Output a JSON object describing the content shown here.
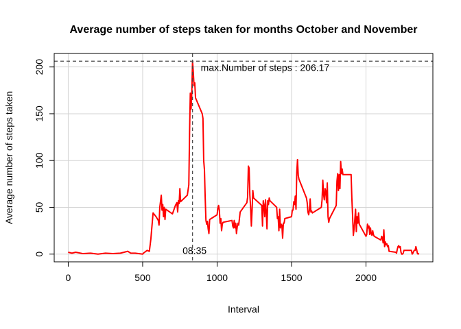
{
  "chart_data": {
    "type": "line",
    "title": "Average number of steps taken for months October and November",
    "xlabel": "Interval",
    "ylabel": "Average number of steps taken",
    "x": [
      0,
      25,
      50,
      100,
      150,
      200,
      250,
      300,
      350,
      400,
      420,
      450,
      500,
      505,
      530,
      545,
      555,
      570,
      590,
      605,
      610,
      615,
      625,
      630,
      635,
      640,
      645,
      650,
      655,
      700,
      720,
      730,
      735,
      740,
      745,
      750,
      755,
      800,
      810,
      815,
      820,
      825,
      830,
      835,
      840,
      845,
      850,
      855,
      900,
      905,
      910,
      915,
      920,
      925,
      930,
      935,
      940,
      945,
      950,
      1000,
      1005,
      1010,
      1015,
      1020,
      1025,
      1030,
      1035,
      1040,
      1100,
      1105,
      1110,
      1115,
      1120,
      1125,
      1130,
      1135,
      1140,
      1145,
      1150,
      1155,
      1200,
      1205,
      1210,
      1215,
      1220,
      1225,
      1230,
      1235,
      1240,
      1245,
      1300,
      1305,
      1310,
      1315,
      1320,
      1325,
      1330,
      1335,
      1340,
      1345,
      1350,
      1355,
      1400,
      1405,
      1410,
      1415,
      1420,
      1425,
      1430,
      1435,
      1440,
      1445,
      1450,
      1455,
      1500,
      1505,
      1510,
      1515,
      1520,
      1525,
      1530,
      1535,
      1540,
      1545,
      1550,
      1600,
      1605,
      1610,
      1615,
      1620,
      1625,
      1630,
      1635,
      1640,
      1700,
      1705,
      1710,
      1715,
      1720,
      1725,
      1730,
      1735,
      1740,
      1745,
      1750,
      1755,
      1800,
      1805,
      1810,
      1815,
      1820,
      1825,
      1830,
      1835,
      1840,
      1845,
      1900,
      1905,
      1910,
      1915,
      1920,
      1925,
      1930,
      1935,
      1940,
      1945,
      1950,
      1955,
      2000,
      2005,
      2010,
      2015,
      2020,
      2025,
      2030,
      2035,
      2040,
      2045,
      2050,
      2055,
      2100,
      2105,
      2110,
      2115,
      2120,
      2125,
      2130,
      2135,
      2140,
      2145,
      2150,
      2155,
      2200,
      2205,
      2210,
      2215,
      2220,
      2225,
      2230,
      2235,
      2240,
      2245,
      2250,
      2255,
      2300,
      2305,
      2310,
      2315,
      2320,
      2325,
      2330,
      2335,
      2340,
      2345,
      2350,
      2355
    ],
    "values": [
      2,
      1,
      2,
      0.5,
      1,
      0,
      1,
      0.5,
      1,
      3,
      1,
      1,
      0,
      1,
      4,
      3,
      16,
      44,
      40,
      36,
      31,
      50,
      63,
      47,
      53,
      40,
      50,
      37,
      48,
      43,
      52,
      55,
      45,
      57,
      54,
      70,
      56,
      63,
      74,
      130,
      172,
      155,
      172,
      206.17,
      195,
      180,
      183,
      167,
      150,
      145,
      100,
      90,
      60,
      36,
      32,
      35,
      27,
      22,
      37,
      42,
      49,
      52,
      47,
      33,
      38,
      25,
      32,
      34,
      36,
      30,
      28,
      36,
      28,
      33,
      22,
      29,
      33,
      31,
      38,
      45,
      55,
      61,
      94,
      92,
      63,
      50,
      30,
      47,
      68,
      60,
      52,
      30,
      57,
      52,
      40,
      58,
      45,
      27,
      57,
      53,
      60,
      57,
      50,
      38,
      40,
      25,
      48,
      28,
      32,
      31,
      17,
      33,
      33,
      38,
      40,
      47,
      47,
      56,
      53,
      62,
      48,
      87,
      101,
      84,
      80,
      60,
      55,
      45,
      42,
      47,
      59,
      45,
      46,
      44,
      50,
      58,
      79,
      64,
      58,
      70,
      67,
      55,
      76,
      40,
      34,
      38,
      52,
      78,
      86,
      68,
      85,
      70,
      99,
      86,
      91,
      85,
      85,
      60,
      41,
      20,
      27,
      37,
      48,
      24,
      40,
      33,
      44,
      32,
      19,
      21,
      32,
      28,
      30,
      21,
      28,
      22,
      20,
      25,
      21,
      19,
      15,
      19,
      18,
      12,
      26,
      8,
      13,
      10,
      11,
      8,
      9,
      3,
      2,
      1,
      5,
      8,
      9,
      7,
      8,
      2,
      0,
      0,
      1,
      4,
      4,
      4,
      0,
      1,
      3,
      4,
      4,
      8,
      5,
      1,
      0,
      1
    ],
    "color": "#ff0000",
    "xlim": [
      -94.2,
      2449.2
    ],
    "ylim": [
      -8.25,
      214.42
    ],
    "xticks": [
      0,
      500,
      1000,
      1500,
      2000
    ],
    "yticks": [
      0,
      50,
      100,
      150,
      200
    ],
    "grid": true,
    "hline": 206.17,
    "vline": 835,
    "annotations": [
      {
        "text": "max.Number of steps : 206.17"
      },
      {
        "text": "08:35"
      }
    ]
  }
}
